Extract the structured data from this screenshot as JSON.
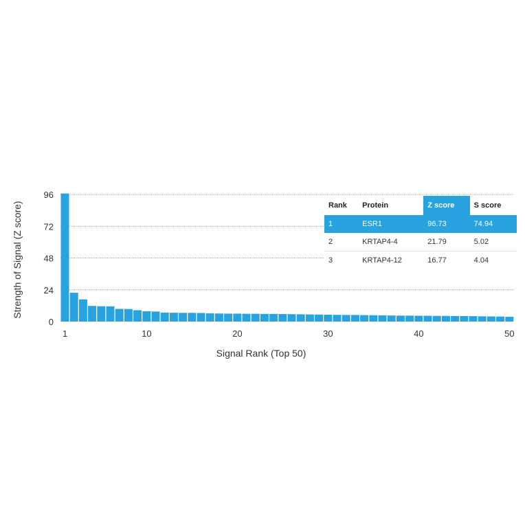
{
  "chart_data": {
    "type": "bar",
    "xlabel": "Signal Rank (Top 50)",
    "ylabel": "Strength of Signal (Z score)",
    "ylim": [
      0,
      96
    ],
    "yticks": [
      "0",
      "24",
      "48",
      "72",
      "96"
    ],
    "xticks": [
      "1",
      "10",
      "20",
      "30",
      "40",
      "50"
    ],
    "grid": "horizontal dashed",
    "bar_color": "#29a3df",
    "x": [
      1,
      2,
      3,
      4,
      5,
      6,
      7,
      8,
      9,
      10,
      11,
      12,
      13,
      14,
      15,
      16,
      17,
      18,
      19,
      20,
      21,
      22,
      23,
      24,
      25,
      26,
      27,
      28,
      29,
      30,
      31,
      32,
      33,
      34,
      35,
      36,
      37,
      38,
      39,
      40,
      41,
      42,
      43,
      44,
      45,
      46,
      47,
      48,
      49,
      50
    ],
    "values": [
      96.73,
      21.79,
      16.77,
      11.8,
      11.6,
      11.5,
      9.6,
      9.5,
      8.6,
      7.8,
      7.6,
      6.8,
      6.7,
      6.6,
      6.6,
      6.5,
      6.2,
      6.1,
      6.0,
      6.0,
      5.9,
      5.9,
      5.8,
      5.8,
      5.7,
      5.6,
      5.5,
      5.4,
      5.3,
      5.2,
      5.1,
      5.0,
      5.0,
      4.9,
      4.8,
      4.7,
      4.6,
      4.5,
      4.5,
      4.4,
      4.4,
      4.3,
      4.3,
      4.2,
      4.2,
      4.1,
      4.0,
      3.9,
      3.8,
      3.6
    ]
  },
  "table": {
    "headers": [
      "Rank",
      "Protein",
      "Z score",
      "S score"
    ],
    "rows": [
      [
        "1",
        "ESR1",
        "96.73",
        "74.94"
      ],
      [
        "2",
        "KRTAP4-4",
        "21.79",
        "5.02"
      ],
      [
        "3",
        "KRTAP4-12",
        "16.77",
        "4.04"
      ]
    ]
  }
}
